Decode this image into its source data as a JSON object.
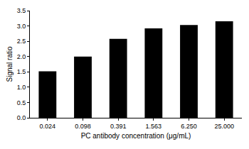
{
  "chart_data": {
    "type": "bar",
    "x_label": "PC antibody concentration (μg/mL)",
    "y_label": "Signal ratio",
    "categories": [
      "0.024",
      "0.098",
      "0.391",
      "1.563",
      "6.250",
      "25.000"
    ],
    "values": [
      1.52,
      2.0,
      2.58,
      2.92,
      3.03,
      3.15
    ],
    "color": "#000000",
    "ylim": [
      0,
      3.5
    ],
    "yticks": [
      {
        "value": 0,
        "label": "0.0"
      },
      0.5,
      {
        "value": 1,
        "label": "1.0"
      },
      1.5,
      {
        "value": 2,
        "label": "2.0"
      },
      2.5,
      {
        "value": 3,
        "label": "3.0"
      },
      3.5
    ],
    "grid": false
  }
}
